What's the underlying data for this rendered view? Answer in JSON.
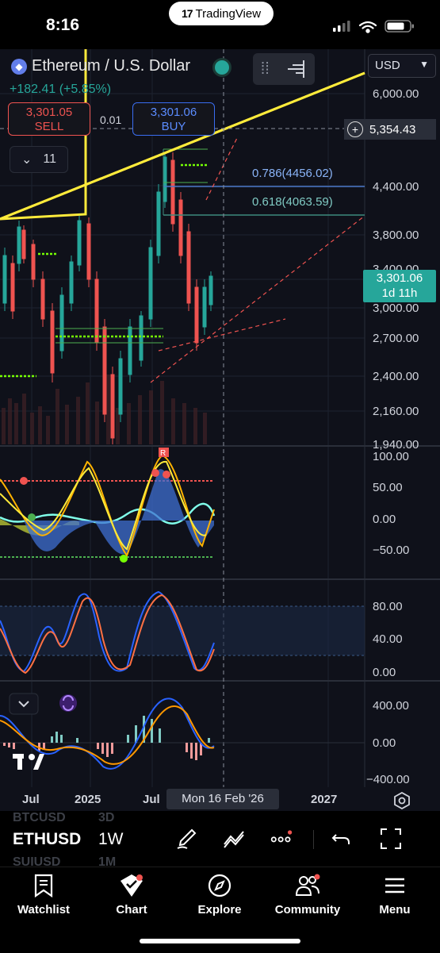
{
  "status_bar": {
    "time": "8:16",
    "app_pill": "TradingView",
    "signal_icon": "signal-icon",
    "wifi_icon": "wifi-icon",
    "battery_icon": "battery-icon"
  },
  "header": {
    "pair_title": "Ethereum / U.S. Dollar",
    "change": "+182.41 (+5.85%)",
    "sell_price": "3,301.05",
    "sell_label": "SELL",
    "spread": "0.01",
    "buy_price": "3,301.06",
    "buy_label": "BUY",
    "currency": "USD",
    "indicators_count": "11"
  },
  "price_axis": {
    "labels": [
      "6,000.00",
      "4,400.00",
      "3,800.00",
      "3,400.00",
      "3,000.00",
      "2,700.00",
      "2,400.00",
      "2,160.00",
      "1,940.00"
    ],
    "cursor_price": "5,354.43",
    "current_price": "3,301.06",
    "countdown": "1d 11h"
  },
  "fib_levels": {
    "l786": "0.786(4456.02)",
    "l618": "0.618(4063.59)"
  },
  "indicator_axes": {
    "osc1": [
      "100.00",
      "50.00",
      "0.00",
      "−50.00"
    ],
    "osc2": [
      "80.00",
      "40.00",
      "0.00"
    ],
    "macd": [
      "400.00",
      "0.00",
      "−400.00"
    ]
  },
  "time_axis": {
    "labels": [
      "Jul",
      "2025",
      "Jul",
      "2027"
    ],
    "cursor_date": "Mon 16 Feb '26"
  },
  "watchlist": {
    "ghost_above": "BTCUSD",
    "ghost_above_tf": "3D",
    "symbol": "ETHUSD",
    "timeframe": "1W",
    "ghost_below": "SUIUSD",
    "ghost_below_tf": "1M"
  },
  "bottom_nav": [
    {
      "label": "Watchlist",
      "icon": "watchlist-icon"
    },
    {
      "label": "Chart",
      "icon": "chart-icon"
    },
    {
      "label": "Explore",
      "icon": "compass-icon"
    },
    {
      "label": "Community",
      "icon": "community-icon"
    },
    {
      "label": "Menu",
      "icon": "menu-icon"
    }
  ],
  "colors": {
    "up": "#26a69a",
    "down": "#ef5350",
    "accent": "#3a6df0",
    "trendline": "#ffeb3b"
  }
}
